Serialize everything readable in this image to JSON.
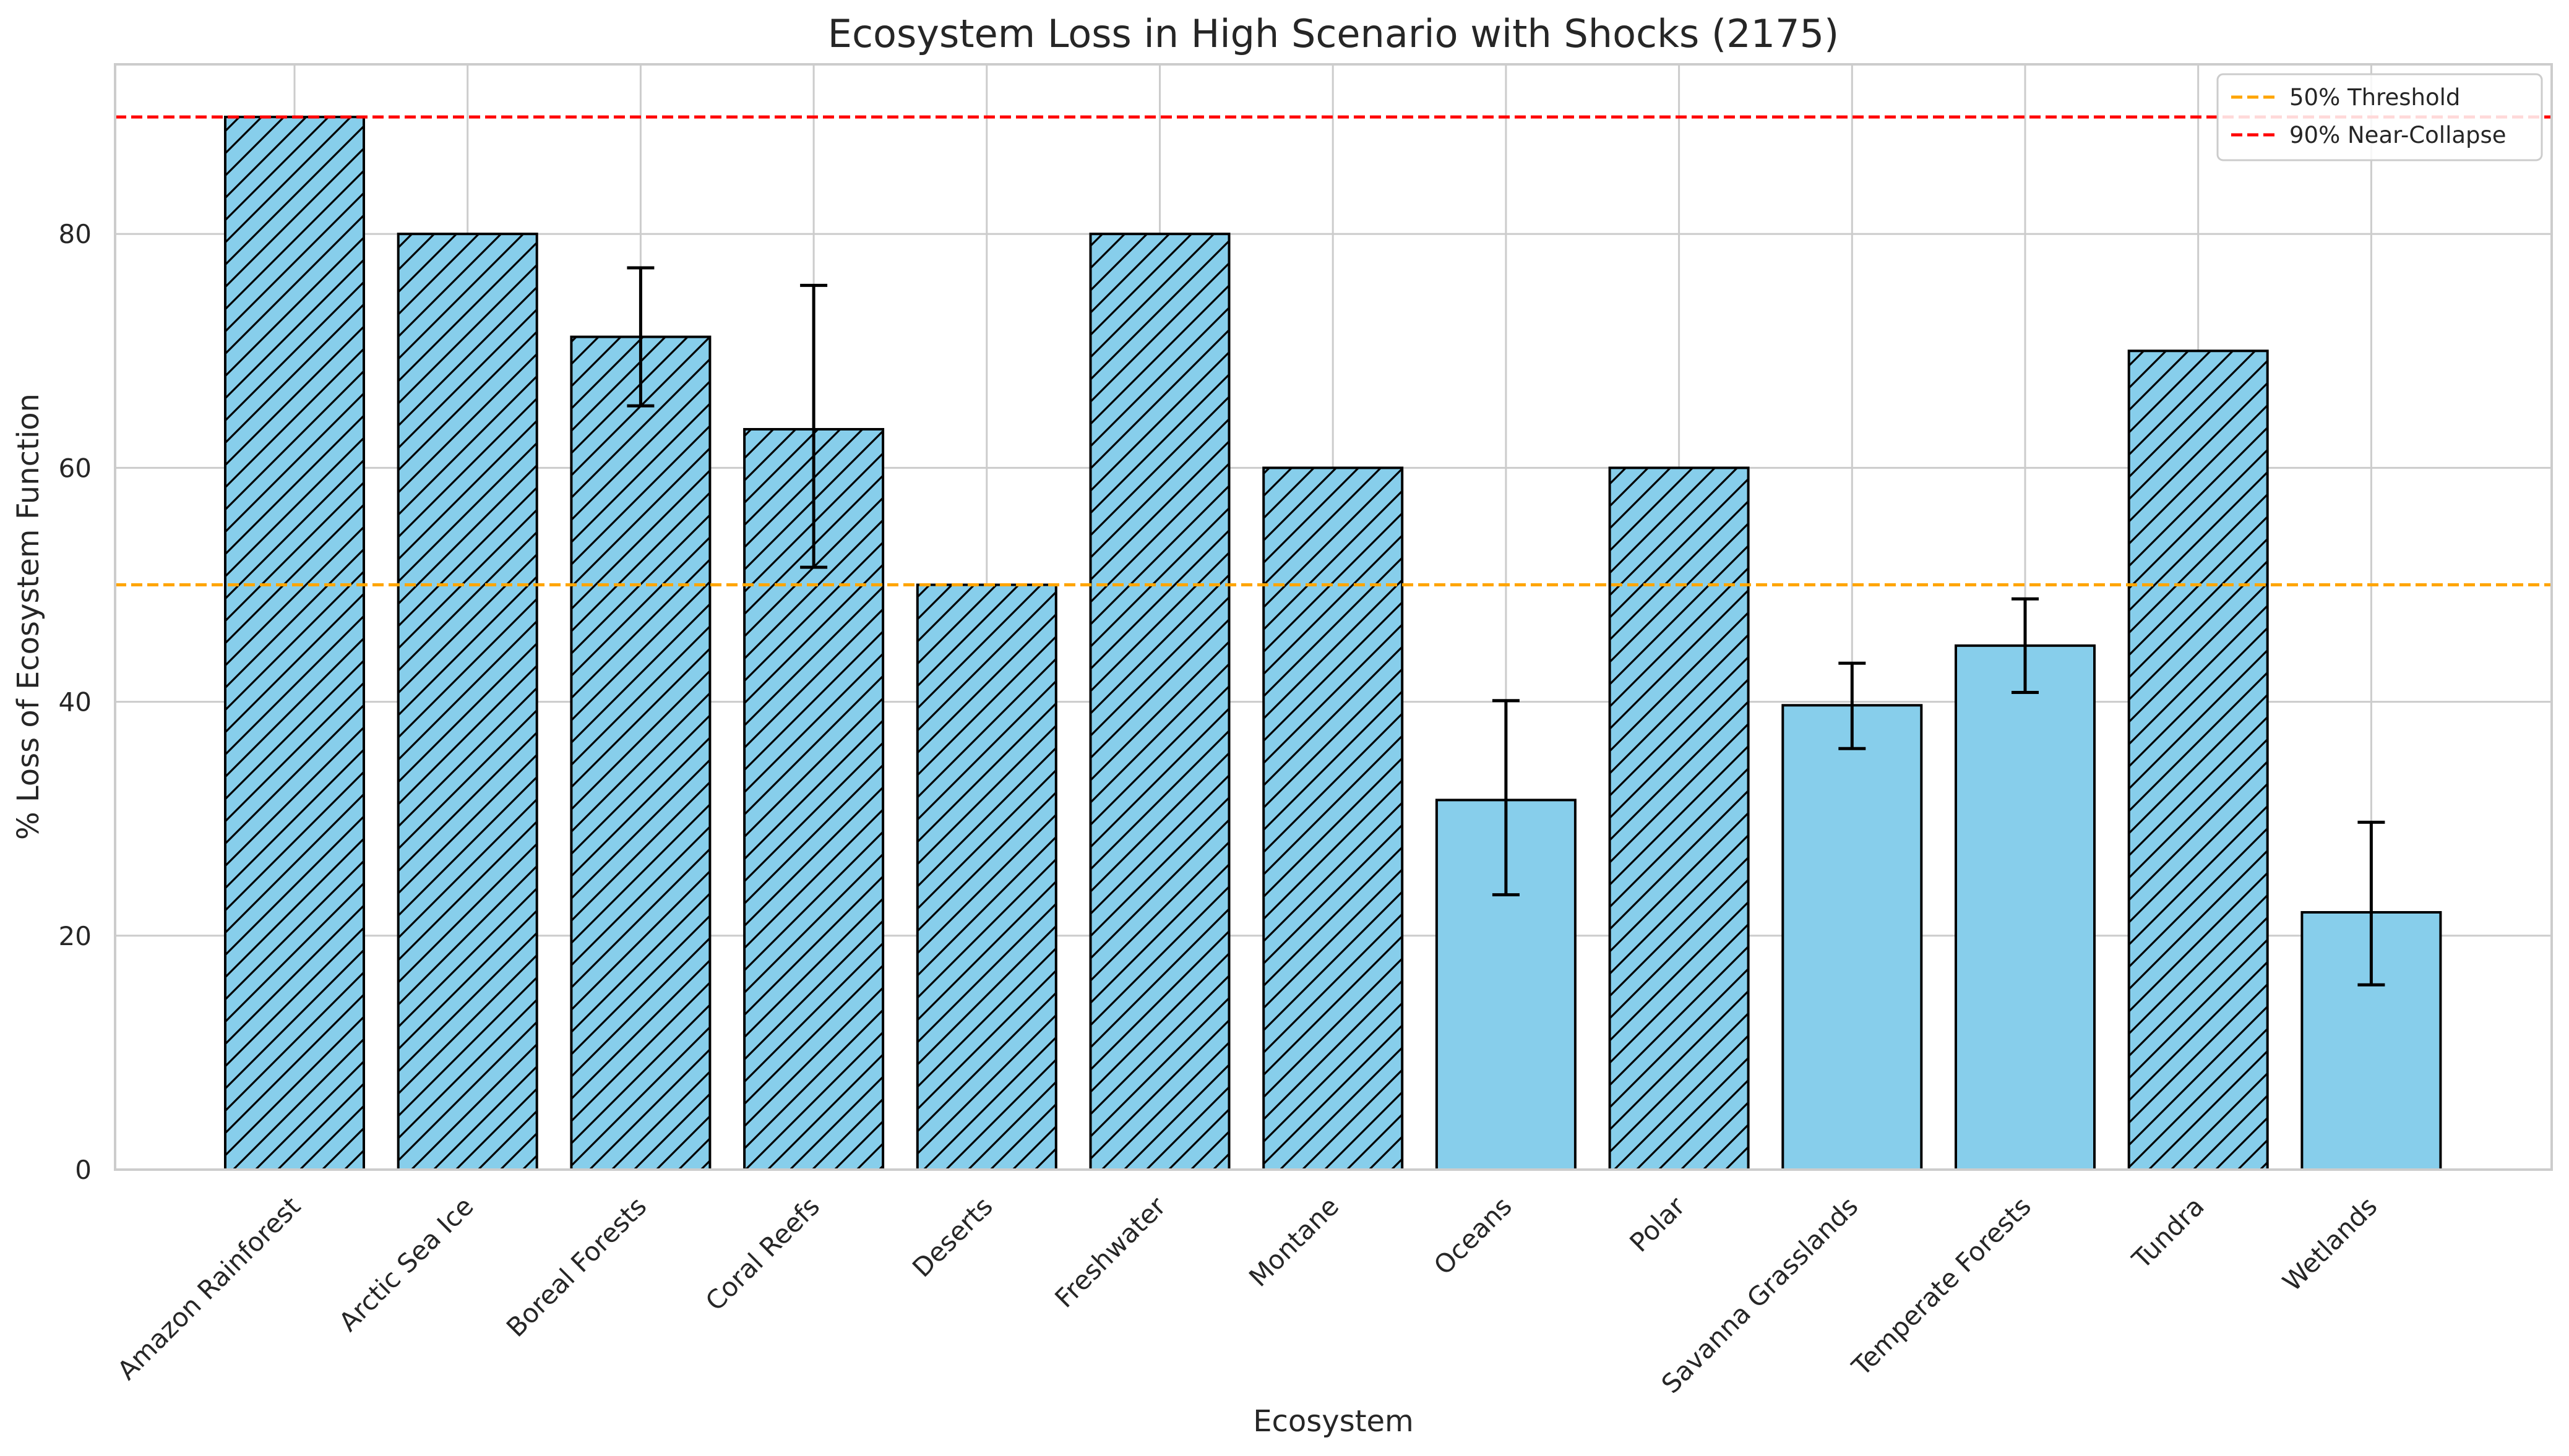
{
  "chart_data": {
    "type": "bar",
    "title": "Ecosystem Loss in High Scenario with Shocks (2175)",
    "xlabel": "Ecosystem",
    "ylabel": "% Loss of Ecosystem Function",
    "ylim": [
      0,
      94.5
    ],
    "yticks": [
      0,
      20,
      40,
      60,
      80
    ],
    "grid": true,
    "legend_position": "top-right",
    "bar_color": "#87ceeb",
    "bar_edge_color": "#000000",
    "categories": [
      "Amazon Rainforest",
      "Arctic Sea Ice",
      "Boreal Forests",
      "Coral Reefs",
      "Deserts",
      "Freshwater",
      "Montane",
      "Oceans",
      "Polar",
      "Savanna Grasslands",
      "Temperate Forests",
      "Tundra",
      "Wetlands"
    ],
    "values": [
      90,
      80,
      71.2,
      63.3,
      50,
      80,
      60,
      31.6,
      60,
      39.7,
      44.8,
      70,
      22.0
    ],
    "error_low": [
      null,
      null,
      65.3,
      51.5,
      null,
      null,
      null,
      23.5,
      null,
      36.0,
      40.8,
      null,
      15.8
    ],
    "error_high": [
      null,
      null,
      77.1,
      75.6,
      null,
      null,
      null,
      40.1,
      null,
      43.3,
      48.8,
      null,
      29.7
    ],
    "hatched": [
      true,
      true,
      true,
      true,
      true,
      true,
      true,
      false,
      true,
      false,
      false,
      true,
      false
    ],
    "reference_lines": [
      {
        "label": "50% Threshold",
        "value": 50,
        "color": "#ffa500"
      },
      {
        "label": "90% Near-Collapse",
        "value": 90,
        "color": "#ff0000"
      }
    ]
  }
}
